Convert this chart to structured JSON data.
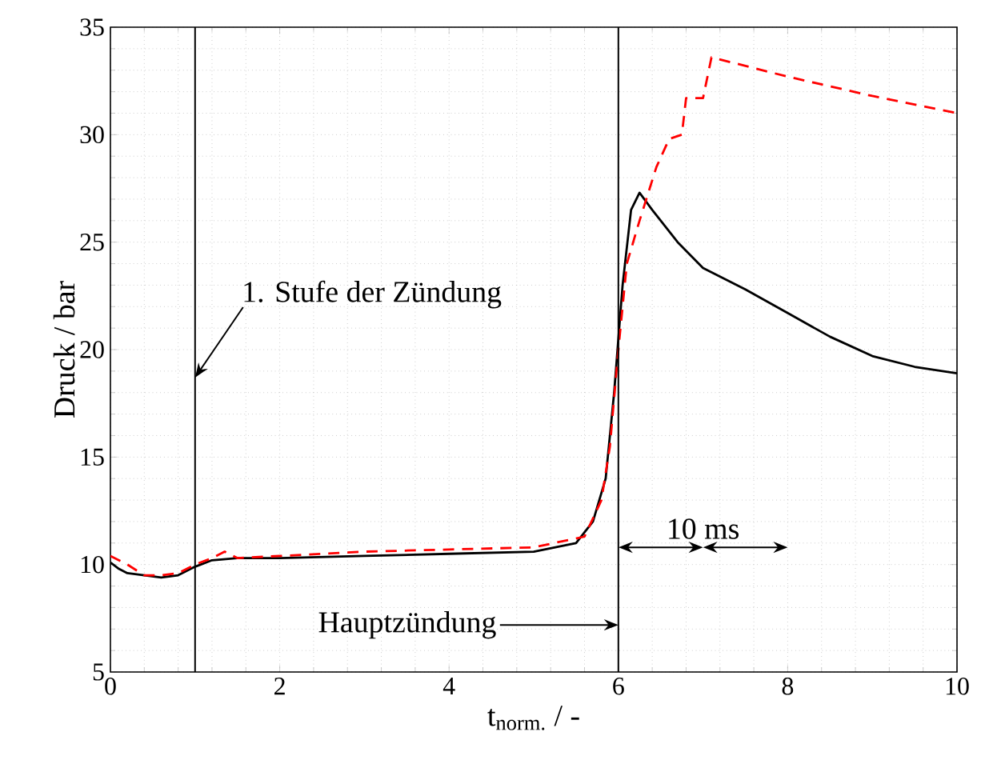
{
  "chart_data": {
    "type": "line",
    "xlabel": "t$_{norm.}$ / -",
    "ylabel": "Druck / bar",
    "xlim": [
      0,
      10
    ],
    "ylim": [
      5,
      35
    ],
    "xticks": [
      0,
      2,
      4,
      6,
      8,
      10
    ],
    "yticks": [
      5,
      10,
      15,
      20,
      25,
      30,
      35
    ],
    "grid": true,
    "x": [
      0,
      0.1,
      0.2,
      0.4,
      0.6,
      0.8,
      1.0,
      1.2,
      1.5,
      2,
      3,
      4,
      5,
      5.5,
      5.7,
      5.85,
      5.95,
      6.05,
      6.15,
      6.25,
      6.4,
      6.7,
      7,
      7.5,
      8,
      8.5,
      9,
      9.5,
      10
    ],
    "series": [
      {
        "color": "#000000",
        "line_style": "solid",
        "values": [
          10.1,
          9.8,
          9.6,
          9.5,
          9.4,
          9.5,
          9.9,
          10.2,
          10.3,
          10.3,
          10.4,
          10.5,
          10.6,
          11.0,
          12,
          14,
          18,
          23,
          26.5,
          27.3,
          26.5,
          25,
          23.8,
          22.8,
          21.7,
          20.6,
          19.7,
          19.2,
          18.9
        ]
      },
      {
        "color": "#ff0000",
        "line_style": "dashed",
        "x": [
          0,
          0.2,
          0.4,
          0.6,
          0.8,
          1,
          1.2,
          1.35,
          1.5,
          2,
          3,
          4,
          5,
          5.6,
          5.8,
          5.9,
          6.0,
          6.1,
          6.25,
          6.45,
          6.6,
          6.75,
          6.8,
          7.0,
          7.1,
          8,
          9,
          10
        ],
        "values": [
          10.4,
          10,
          9.5,
          9.5,
          9.6,
          10,
          10.3,
          10.6,
          10.3,
          10.4,
          10.6,
          10.7,
          10.8,
          11.3,
          13,
          15.5,
          20,
          24,
          26,
          28.5,
          29.8,
          30,
          31.7,
          31.7,
          33.6,
          32.7,
          31.8,
          31.0
        ]
      }
    ],
    "ref_lines": [
      {
        "axis": "x",
        "value": 1,
        "color": "#000000"
      },
      {
        "axis": "x",
        "value": 6,
        "color": "#000000"
      }
    ],
    "annotations": [
      {
        "text": "1. Stufe der Zündung",
        "x": 1,
        "y": 18.7
      },
      "Hauptzündung",
      {
        "text": "10 ms",
        "x": 6,
        "y": 10.8
      }
    ]
  }
}
